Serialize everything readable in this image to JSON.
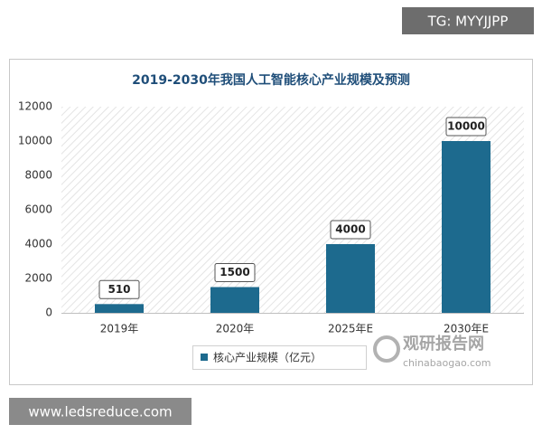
{
  "chart_data": {
    "type": "bar",
    "title": "2019-2030年我国人工智能核心产业规模及预测",
    "categories": [
      "2019年",
      "2020年",
      "2025年E",
      "2030年E"
    ],
    "series": [
      {
        "name": "核心产业规模（亿元）",
        "color": "#1d6a8e",
        "values": [
          510,
          1500,
          4000,
          10000
        ]
      }
    ],
    "ylim": [
      0,
      12000
    ],
    "yticks": [
      0,
      2000,
      4000,
      6000,
      8000,
      10000,
      12000
    ],
    "grid": false
  },
  "watermarks": {
    "top_right": "TG: MYYJJPP",
    "bottom_left": "www.ledsreduce.com",
    "logo": "观研报告网",
    "logo_url": "chinabaogao.com"
  }
}
